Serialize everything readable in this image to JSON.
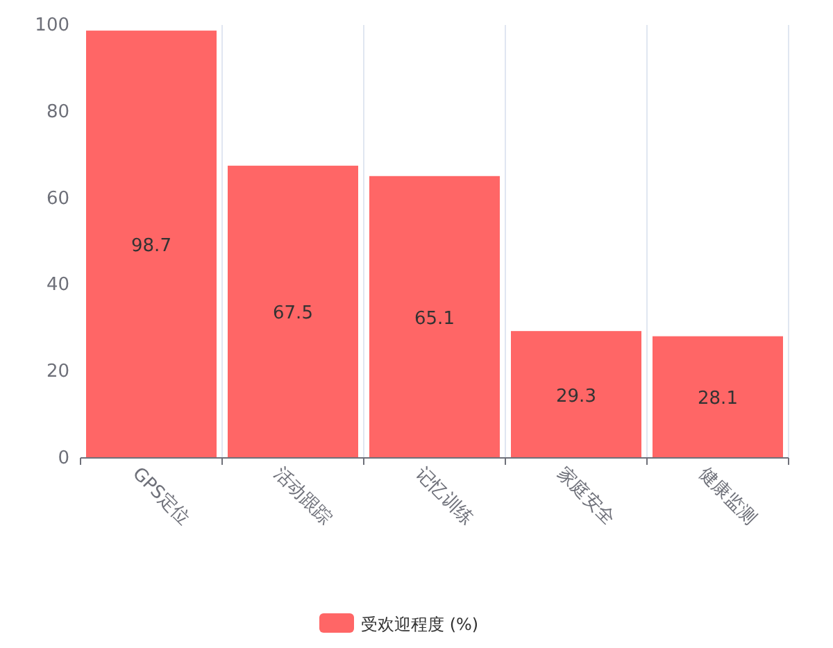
{
  "chart_data": {
    "type": "bar",
    "categories": [
      "GPS定位",
      "活动跟踪",
      "记忆训练",
      "家庭安全",
      "健康监测"
    ],
    "series": [
      {
        "name": "受欢迎程度 (%)",
        "color": "#ff6666",
        "values": [
          98.7,
          67.5,
          65.1,
          29.3,
          28.1
        ]
      }
    ],
    "ylim": [
      0,
      100
    ],
    "yticks": [
      0,
      20,
      40,
      60,
      80,
      100
    ],
    "grid": "x",
    "legend": "bottom",
    "data_labels": true
  }
}
